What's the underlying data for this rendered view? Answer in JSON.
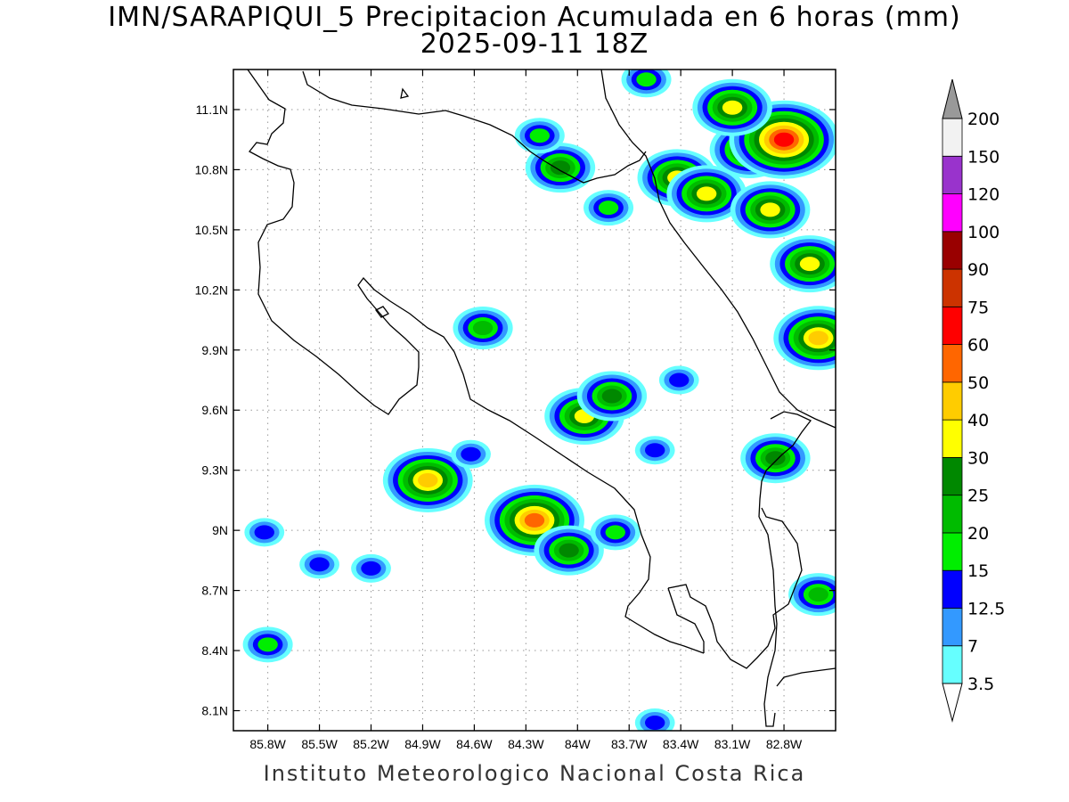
{
  "title": "IMN/SARAPIQUI_5 Precipitacion Acumulada en 6 horas (mm)",
  "subtitle": "2025-09-11 18Z",
  "footer": "Instituto Meteorologico Nacional Costa Rica",
  "map": {
    "lon_range": [
      -86.0,
      -82.5
    ],
    "lat_range": [
      8.0,
      11.3
    ],
    "lat_ticks": [
      "11.1N",
      "10.8N",
      "10.5N",
      "10.2N",
      "9.9N",
      "9.6N",
      "9.3N",
      "9N",
      "8.7N",
      "8.4N",
      "8.1N"
    ],
    "lon_ticks": [
      "85.8W",
      "85.5W",
      "85.2W",
      "84.9W",
      "84.6W",
      "84.3W",
      "84W",
      "83.7W",
      "83.4W",
      "83.1W",
      "82.8W"
    ]
  },
  "colorbar": {
    "labels": [
      "3.5",
      "7",
      "12.5",
      "15",
      "20",
      "25",
      "30",
      "40",
      "50",
      "60",
      "75",
      "90",
      "100",
      "120",
      "150",
      "200"
    ],
    "colors": [
      "#66ffff",
      "#3399ff",
      "#0000ff",
      "#00ee00",
      "#00bb00",
      "#008800",
      "#ffff00",
      "#ffcc00",
      "#ff6600",
      "#ff0000",
      "#cc3300",
      "#990000",
      "#ff00ff",
      "#9933cc",
      "#f2f2f2"
    ],
    "over_color": "#999999",
    "under_color": "#ffffff"
  },
  "precip_cells": [
    {
      "lon": -85.82,
      "lat": 8.99,
      "value": 12.5
    },
    {
      "lon": -85.8,
      "lat": 8.43,
      "value": 15
    },
    {
      "lon": -85.5,
      "lat": 8.83,
      "value": 12.5
    },
    {
      "lon": -85.2,
      "lat": 8.81,
      "value": 12.5
    },
    {
      "lon": -84.87,
      "lat": 9.25,
      "value": 40
    },
    {
      "lon": -84.62,
      "lat": 9.38,
      "value": 12.5
    },
    {
      "lon": -84.55,
      "lat": 10.01,
      "value": 20
    },
    {
      "lon": -84.25,
      "lat": 9.05,
      "value": 50
    },
    {
      "lon": -84.05,
      "lat": 8.9,
      "value": 25
    },
    {
      "lon": -83.78,
      "lat": 8.99,
      "value": 15
    },
    {
      "lon": -83.96,
      "lat": 9.57,
      "value": 30
    },
    {
      "lon": -83.8,
      "lat": 9.67,
      "value": 25
    },
    {
      "lon": -83.41,
      "lat": 9.75,
      "value": 12.5
    },
    {
      "lon": -83.55,
      "lat": 9.4,
      "value": 12.5
    },
    {
      "lon": -82.85,
      "lat": 9.36,
      "value": 25
    },
    {
      "lon": -82.6,
      "lat": 9.96,
      "value": 40
    },
    {
      "lon": -82.6,
      "lat": 8.68,
      "value": 20
    },
    {
      "lon": -83.55,
      "lat": 8.04,
      "value": 12.5
    },
    {
      "lon": -84.1,
      "lat": 10.81,
      "value": 25
    },
    {
      "lon": -83.82,
      "lat": 10.61,
      "value": 15
    },
    {
      "lon": -83.42,
      "lat": 10.76,
      "value": 30
    },
    {
      "lon": -83.25,
      "lat": 10.68,
      "value": 30
    },
    {
      "lon": -83.0,
      "lat": 10.9,
      "value": 30
    },
    {
      "lon": -82.8,
      "lat": 10.95,
      "value": 60
    },
    {
      "lon": -82.88,
      "lat": 10.6,
      "value": 30
    },
    {
      "lon": -82.65,
      "lat": 10.33,
      "value": 30
    },
    {
      "lon": -83.1,
      "lat": 11.11,
      "value": 30
    },
    {
      "lon": -84.22,
      "lat": 10.97,
      "value": 15
    },
    {
      "lon": -83.6,
      "lat": 11.25,
      "value": 15
    }
  ]
}
